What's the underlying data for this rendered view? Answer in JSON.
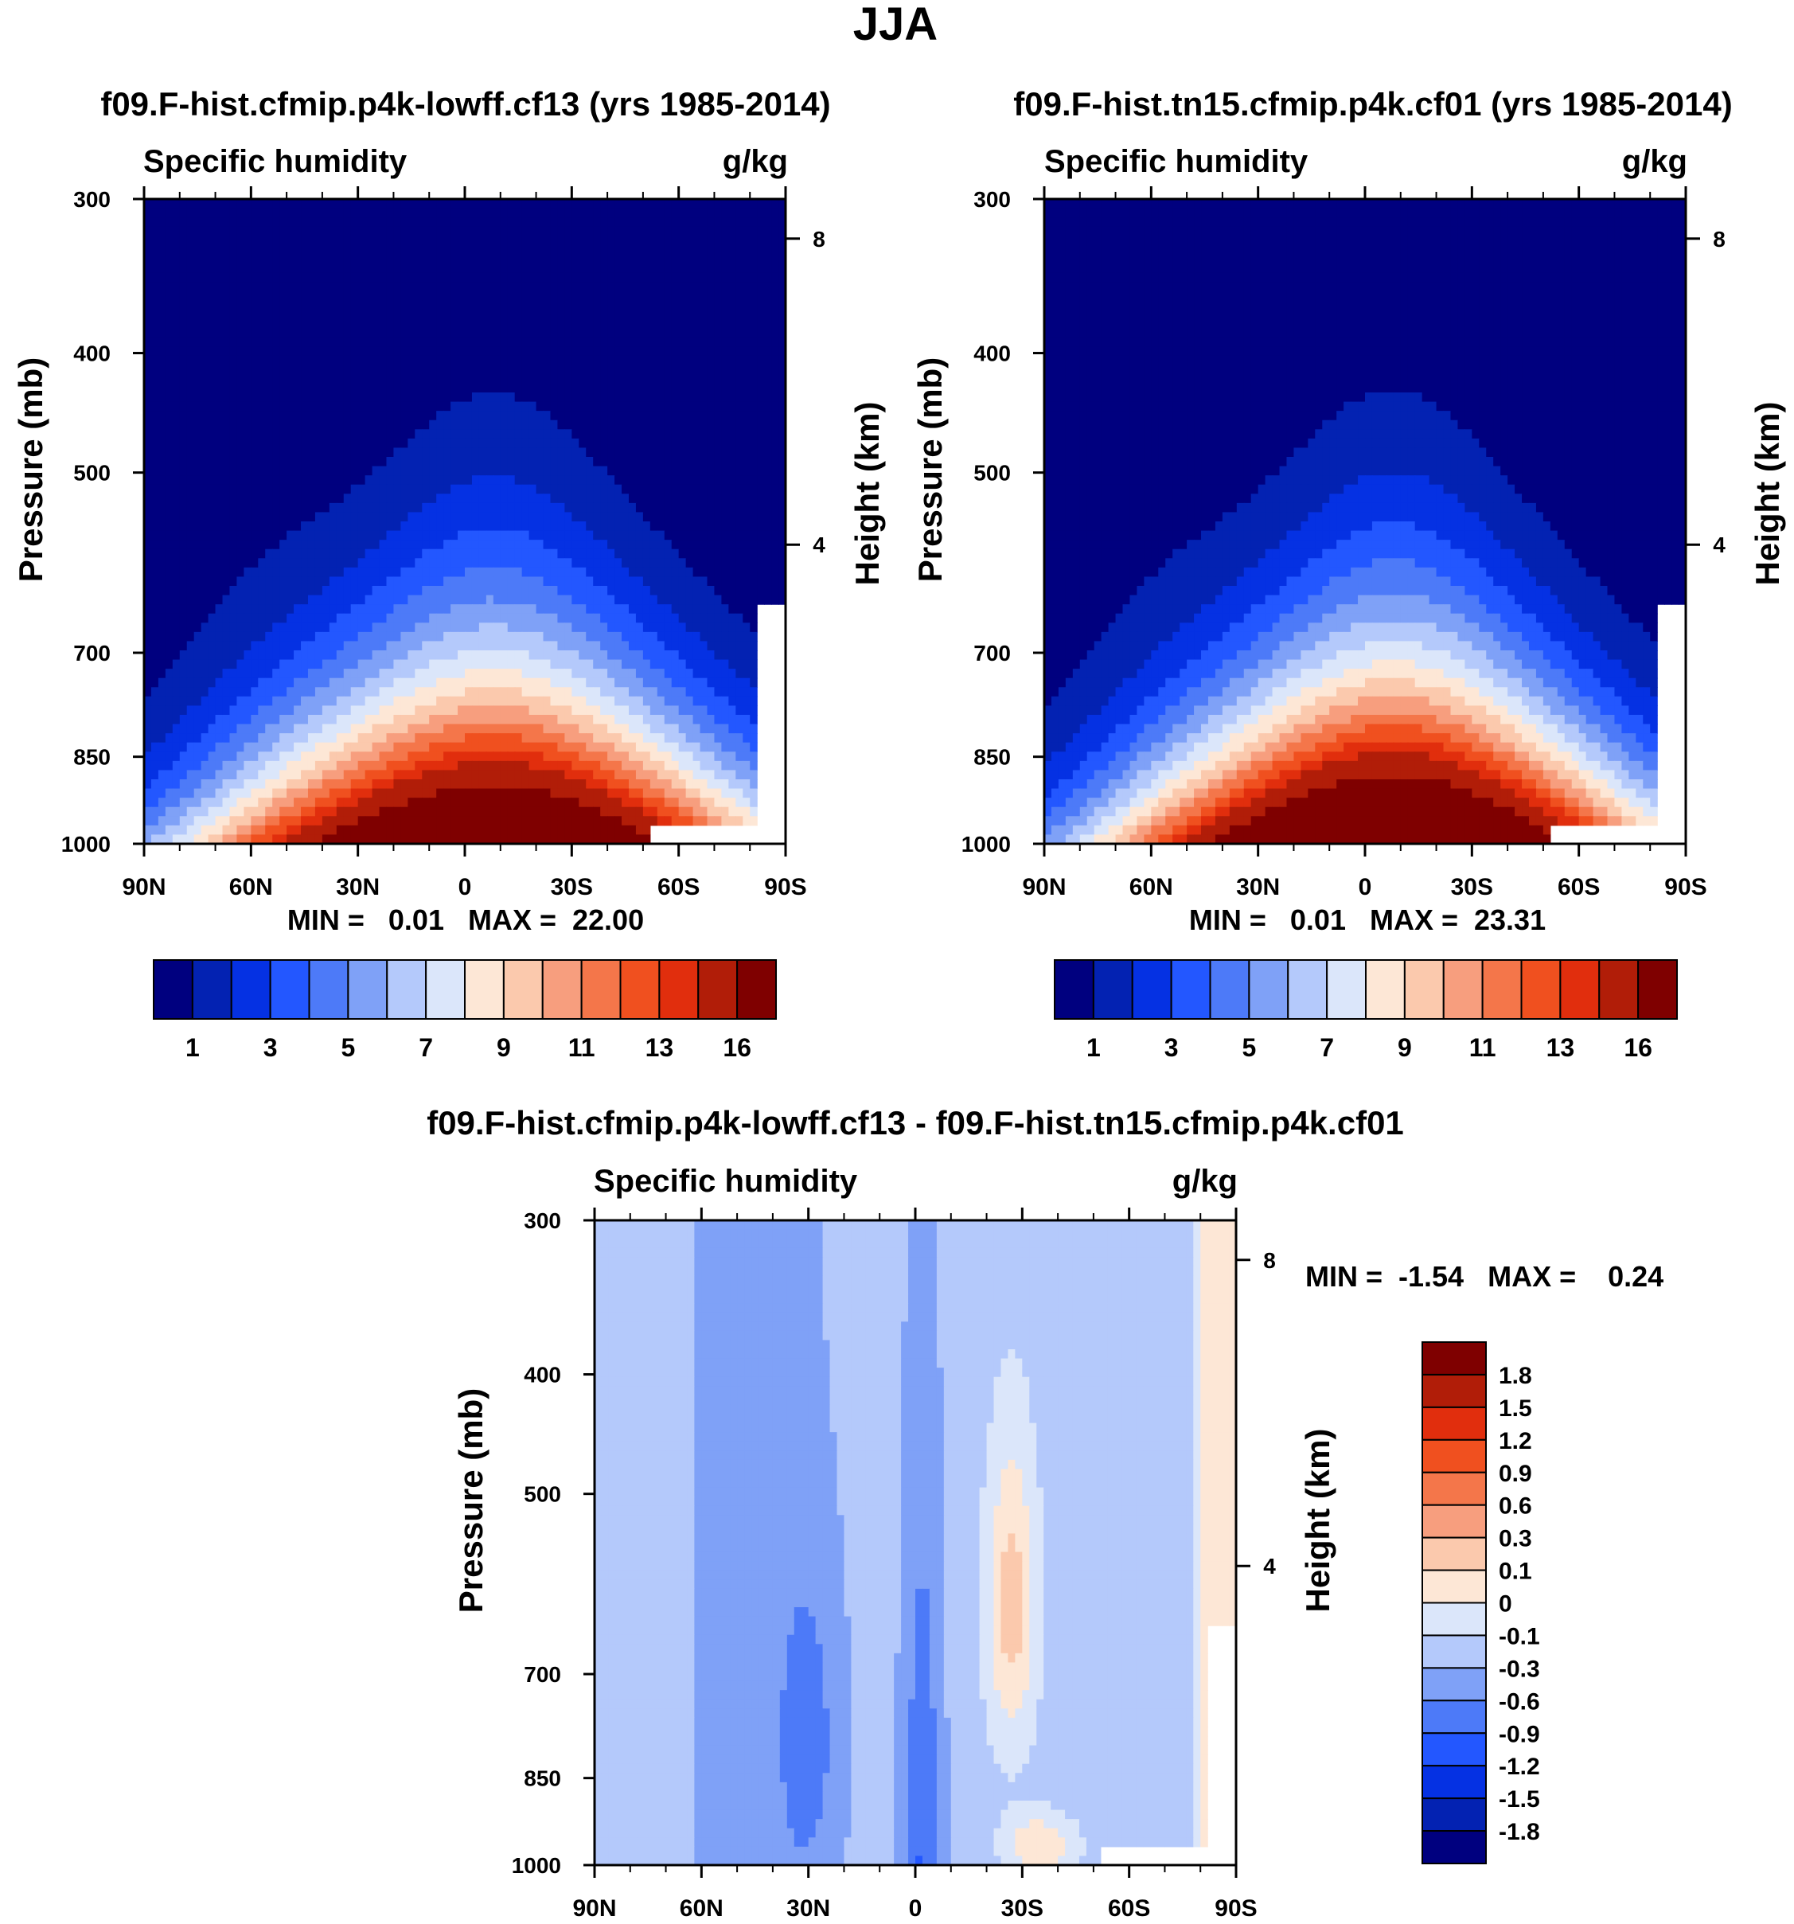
{
  "figure": {
    "title": "JJA"
  },
  "palettes": {
    "mean": [
      "#00007f",
      "#0322b2",
      "#0531e3",
      "#2357ff",
      "#4d7af8",
      "#7fa1f7",
      "#b4c9fb",
      "#dbe6fa",
      "#fde7d6",
      "#fbc9ad",
      "#f79e7e",
      "#f4764a",
      "#f0501f",
      "#e12e0d",
      "#b11d08",
      "#7f0000"
    ],
    "diff": [
      "#00007f",
      "#0322b2",
      "#0531e3",
      "#2357ff",
      "#4d7af8",
      "#7fa1f7",
      "#b4c9fb",
      "#dbe6fa",
      "#fde7d6",
      "#fbc9ad",
      "#f79e7e",
      "#f4764a",
      "#f0501f",
      "#e12e0d",
      "#b11d08",
      "#7f0000"
    ]
  },
  "chart_data": [
    {
      "type": "heatmap",
      "title": "f09.F-hist.cfmip.p4k-lowff.cf13 (yrs 1985-2014)",
      "left_label": "Specific humidity",
      "units": "g/kg",
      "ylabel": "Pressure (mb)",
      "ylabel_right": "Height (km)",
      "x_ticks": [
        "90N",
        "60N",
        "30N",
        "0",
        "30S",
        "60S",
        "90S"
      ],
      "y_ticks": [
        "300",
        "400",
        "500",
        "700",
        "850",
        "1000"
      ],
      "y_ticks_right": [
        "8",
        "4"
      ],
      "min_max_text": "MIN =   0.01   MAX =  22.00",
      "min": 0.01,
      "max": 22.0,
      "levels_labels": [
        "1",
        "3",
        "5",
        "7",
        "9",
        "11",
        "13",
        "16"
      ],
      "peak": 22.0,
      "peak_lat": -8,
      "width_factor": 1.0
    },
    {
      "type": "heatmap",
      "title": "f09.F-hist.tn15.cfmip.p4k.cf01 (yrs 1985-2014)",
      "left_label": "Specific humidity",
      "units": "g/kg",
      "ylabel": "Pressure (mb)",
      "ylabel_right": "Height (km)",
      "x_ticks": [
        "90N",
        "60N",
        "30N",
        "0",
        "30S",
        "60S",
        "90S"
      ],
      "y_ticks": [
        "300",
        "400",
        "500",
        "700",
        "850",
        "1000"
      ],
      "y_ticks_right": [
        "8",
        "4"
      ],
      "min_max_text": "MIN =   0.01   MAX =  23.31",
      "min": 0.01,
      "max": 23.31,
      "levels_labels": [
        "1",
        "3",
        "5",
        "7",
        "9",
        "11",
        "13",
        "16"
      ],
      "peak": 23.31,
      "peak_lat": -8,
      "width_factor": 0.95
    },
    {
      "type": "heatmap",
      "title": "f09.F-hist.cfmip.p4k-lowff.cf13 - f09.F-hist.tn15.cfmip.p4k.cf01",
      "left_label": "Specific humidity",
      "units": "g/kg",
      "ylabel": "Pressure (mb)",
      "ylabel_right": "Height (km)",
      "x_ticks": [
        "90N",
        "60N",
        "30N",
        "0",
        "30S",
        "60S",
        "90S"
      ],
      "y_ticks": [
        "300",
        "400",
        "500",
        "700",
        "850",
        "1000"
      ],
      "y_ticks_right": [
        "8",
        "4"
      ],
      "min_max_text": "MIN =  -1.54   MAX =    0.24",
      "min": -1.54,
      "max": 0.24,
      "levels_labels": [
        "1.8",
        "1.5",
        "1.2",
        "0.9",
        "0.6",
        "0.3",
        "0.1",
        "0",
        "-0.1",
        "-0.3",
        "-0.6",
        "-0.9",
        "-1.2",
        "-1.5",
        "-1.8"
      ]
    }
  ]
}
